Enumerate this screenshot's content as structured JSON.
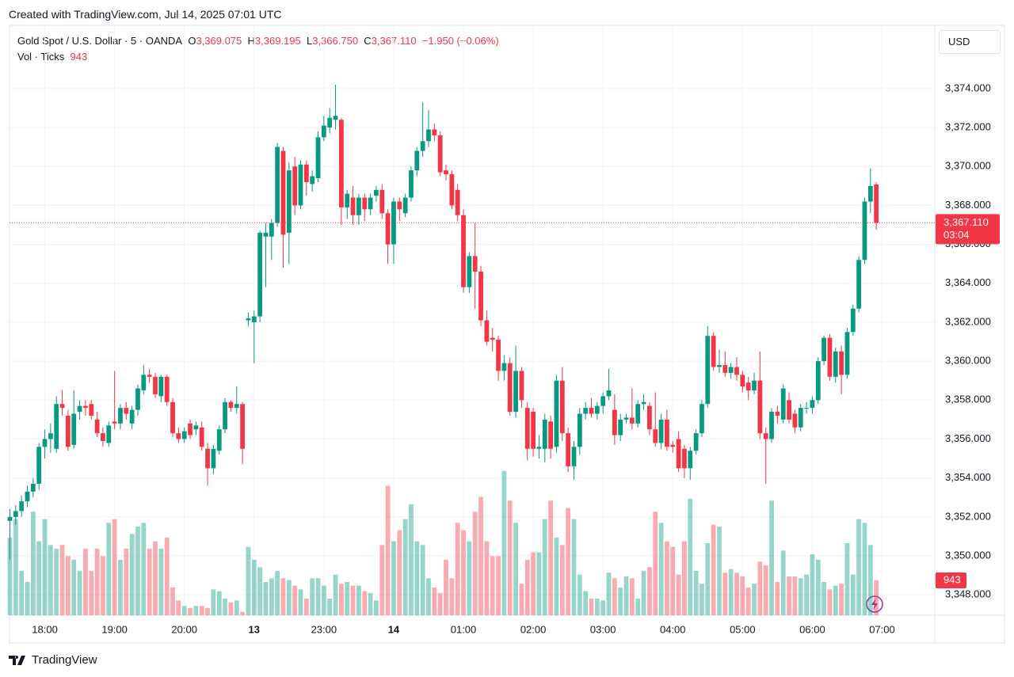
{
  "header": {
    "created": "Created with TradingView.com, Jul 14, 2025 07:01 UTC",
    "symbol": "Gold Spot / U.S. Dollar · 5 · OANDA",
    "ohlc_labels": [
      {
        "key": "O",
        "value": "3,369.075"
      },
      {
        "key": "H",
        "value": "3,369.195"
      },
      {
        "key": "L",
        "value": "3,366.750"
      },
      {
        "key": "C",
        "value": "3,367.110"
      }
    ],
    "change": "−1.950 (−0.06%)",
    "volume_title": "Vol · Ticks",
    "currency": "USD",
    "countdown": "03:04",
    "brand": "TradingView"
  },
  "chart_data": {
    "type": "candlestick",
    "up_color": "#089981",
    "down_color": "#f23645",
    "grid": true,
    "ylim": [
      3346.95,
      3377.25
    ],
    "yticks": [
      {
        "value": 3348,
        "label": "3,348.000"
      },
      {
        "value": 3350,
        "label": "3,350.000"
      },
      {
        "value": 3352,
        "label": "3,352.000"
      },
      {
        "value": 3354,
        "label": "3,354.000"
      },
      {
        "value": 3356,
        "label": "3,356.000"
      },
      {
        "value": 3358,
        "label": "3,358.000"
      },
      {
        "value": 3360,
        "label": "3,360.000"
      },
      {
        "value": 3362,
        "label": "3,362.000"
      },
      {
        "value": 3364,
        "label": "3,364.000"
      },
      {
        "value": 3366,
        "label": "3,366.000"
      },
      {
        "value": 3368,
        "label": "3,368.000"
      },
      {
        "value": 3370,
        "label": "3,370.000"
      },
      {
        "value": 3372,
        "label": "3,372.000"
      },
      {
        "value": 3374,
        "label": "3,374.000"
      }
    ],
    "xticks": [
      {
        "value": 6,
        "label": "18:00"
      },
      {
        "value": 18,
        "label": "19:00"
      },
      {
        "value": 30,
        "label": "20:00"
      },
      {
        "value": 42,
        "label": "13"
      },
      {
        "value": 54,
        "label": "23:00"
      },
      {
        "value": 66,
        "label": "14"
      },
      {
        "value": 78,
        "label": "01:00"
      },
      {
        "value": 90,
        "label": "02:00"
      },
      {
        "value": 102,
        "label": "03:00"
      },
      {
        "value": 114,
        "label": "04:00"
      },
      {
        "value": 126,
        "label": "05:00"
      },
      {
        "value": 138,
        "label": "06:00"
      },
      {
        "value": 150,
        "label": "07:00"
      }
    ],
    "last_price": {
      "value": 3367.11,
      "label": "3,367.110"
    },
    "ohlc": [
      [
        3351.8,
        3352.4,
        3349.8,
        3352.0
      ],
      [
        3352.0,
        3352.6,
        3351.6,
        3352.3
      ],
      [
        3352.3,
        3353.1,
        3352.0,
        3352.8
      ],
      [
        3352.8,
        3353.6,
        3352.5,
        3353.3
      ],
      [
        3353.3,
        3354.0,
        3353.0,
        3353.7
      ],
      [
        3353.7,
        3355.8,
        3353.4,
        3355.6
      ],
      [
        3355.6,
        3356.5,
        3355.0,
        3356.0
      ],
      [
        3356.0,
        3356.8,
        3355.3,
        3356.3
      ],
      [
        3355.5,
        3358.2,
        3355.3,
        3357.8
      ],
      [
        3357.8,
        3358.5,
        3357.2,
        3357.6
      ],
      [
        3357.2,
        3357.5,
        3355.4,
        3355.6
      ],
      [
        3355.7,
        3358.5,
        3355.5,
        3357.3
      ],
      [
        3357.4,
        3358.0,
        3357.0,
        3357.7
      ],
      [
        3357.7,
        3358.0,
        3357.2,
        3357.6
      ],
      [
        3357.8,
        3358.0,
        3357.0,
        3357.2
      ],
      [
        3357.0,
        3357.4,
        3356.1,
        3356.3
      ],
      [
        3356.3,
        3356.6,
        3355.6,
        3355.9
      ],
      [
        3355.8,
        3356.9,
        3355.6,
        3356.7
      ],
      [
        3356.9,
        3359.5,
        3356.5,
        3356.8
      ],
      [
        3356.8,
        3357.8,
        3356.5,
        3357.6
      ],
      [
        3357.6,
        3357.9,
        3357.0,
        3357.3
      ],
      [
        3356.8,
        3357.7,
        3356.5,
        3357.5
      ],
      [
        3357.5,
        3358.8,
        3357.2,
        3358.6
      ],
      [
        3358.5,
        3359.8,
        3358.3,
        3359.3
      ],
      [
        3359.3,
        3359.6,
        3358.9,
        3359.2
      ],
      [
        3359.2,
        3359.4,
        3358.1,
        3358.3
      ],
      [
        3358.2,
        3359.3,
        3357.9,
        3359.2
      ],
      [
        3359.2,
        3359.3,
        3357.7,
        3357.9
      ],
      [
        3357.9,
        3358.1,
        3356.1,
        3356.3
      ],
      [
        3356.3,
        3356.6,
        3355.8,
        3356.0
      ],
      [
        3356.0,
        3356.6,
        3355.8,
        3356.4
      ],
      [
        3356.8,
        3357.0,
        3356.0,
        3356.2
      ],
      [
        3356.5,
        3356.9,
        3356.2,
        3356.7
      ],
      [
        3356.6,
        3356.9,
        3355.4,
        3355.6
      ],
      [
        3355.5,
        3355.8,
        3353.6,
        3354.5
      ],
      [
        3354.5,
        3355.7,
        3354.2,
        3355.5
      ],
      [
        3355.4,
        3356.7,
        3355.2,
        3356.5
      ],
      [
        3356.5,
        3358.1,
        3356.3,
        3357.9
      ],
      [
        3357.9,
        3358.0,
        3357.4,
        3357.6
      ],
      [
        3357.6,
        3358.7,
        3357.3,
        3357.8
      ],
      [
        3357.8,
        3357.9,
        3354.7,
        3355.5
      ],
      [
        3362.1,
        3362.5,
        3361.8,
        3362.2
      ],
      [
        3362.0,
        3362.6,
        3359.9,
        3362.3
      ],
      [
        3362.3,
        3366.7,
        3362.0,
        3366.6
      ],
      [
        3366.4,
        3367.1,
        3363.8,
        3366.6
      ],
      [
        3366.4,
        3367.3,
        3365.2,
        3367.1
      ],
      [
        3367.1,
        3371.2,
        3366.9,
        3371.0
      ],
      [
        3370.8,
        3371.0,
        3364.8,
        3366.5
      ],
      [
        3366.6,
        3370.2,
        3365.0,
        3369.8
      ],
      [
        3370.0,
        3370.5,
        3367.5,
        3368.0
      ],
      [
        3368.0,
        3370.3,
        3367.8,
        3370.1
      ],
      [
        3370.1,
        3370.3,
        3368.5,
        3369.2
      ],
      [
        3369.1,
        3369.8,
        3368.7,
        3369.5
      ],
      [
        3369.4,
        3371.8,
        3369.2,
        3371.5
      ],
      [
        3371.5,
        3372.6,
        3371.3,
        3372.1
      ],
      [
        3372.0,
        3373.0,
        3371.7,
        3372.5
      ],
      [
        3372.4,
        3374.2,
        3371.9,
        3372.6
      ],
      [
        3372.4,
        3372.5,
        3367.0,
        3367.9
      ],
      [
        3367.9,
        3368.8,
        3367.3,
        3368.6
      ],
      [
        3368.4,
        3369.0,
        3367.0,
        3367.5
      ],
      [
        3367.5,
        3368.6,
        3367.0,
        3368.4
      ],
      [
        3368.4,
        3368.6,
        3367.2,
        3367.8
      ],
      [
        3367.8,
        3368.6,
        3367.5,
        3368.4
      ],
      [
        3368.5,
        3369.0,
        3368.2,
        3368.8
      ],
      [
        3368.8,
        3369.1,
        3367.3,
        3367.6
      ],
      [
        3367.6,
        3367.8,
        3365.0,
        3366.0
      ],
      [
        3366.0,
        3368.4,
        3365.0,
        3368.2
      ],
      [
        3368.2,
        3368.4,
        3367.2,
        3367.8
      ],
      [
        3367.6,
        3368.6,
        3367.4,
        3368.4
      ],
      [
        3368.4,
        3370.0,
        3368.2,
        3369.8
      ],
      [
        3369.8,
        3371.0,
        3369.5,
        3370.8
      ],
      [
        3370.8,
        3373.3,
        3370.5,
        3371.3
      ],
      [
        3371.3,
        3372.9,
        3371.0,
        3371.9
      ],
      [
        3371.9,
        3372.2,
        3371.3,
        3371.6
      ],
      [
        3371.6,
        3371.8,
        3369.5,
        3369.7
      ],
      [
        3369.8,
        3370.1,
        3369.3,
        3369.6
      ],
      [
        3369.6,
        3369.8,
        3367.8,
        3368.0
      ],
      [
        3368.8,
        3369.1,
        3367.2,
        3367.5
      ],
      [
        3367.5,
        3367.8,
        3363.5,
        3363.8
      ],
      [
        3363.8,
        3365.6,
        3363.5,
        3365.4
      ],
      [
        3365.4,
        3367.1,
        3362.7,
        3364.6
      ],
      [
        3364.6,
        3364.9,
        3361.8,
        3362.1
      ],
      [
        3362.1,
        3362.6,
        3360.8,
        3361.0
      ],
      [
        3361.2,
        3361.7,
        3360.5,
        3361.1
      ],
      [
        3361.1,
        3361.3,
        3359.0,
        3359.5
      ],
      [
        3359.5,
        3360.3,
        3359.0,
        3359.9
      ],
      [
        3359.9,
        3360.2,
        3357.2,
        3357.4
      ],
      [
        3357.4,
        3360.8,
        3357.1,
        3359.5
      ],
      [
        3359.5,
        3359.7,
        3357.6,
        3358.0
      ],
      [
        3357.6,
        3357.9,
        3354.9,
        3355.5
      ],
      [
        3357.4,
        3357.6,
        3355.1,
        3355.5
      ],
      [
        3355.5,
        3356.2,
        3355.0,
        3355.6
      ],
      [
        3355.5,
        3357.3,
        3354.8,
        3357.0
      ],
      [
        3356.9,
        3357.2,
        3355.0,
        3355.5
      ],
      [
        3355.6,
        3359.3,
        3355.3,
        3359.0
      ],
      [
        3359.0,
        3359.7,
        3355.9,
        3356.3
      ],
      [
        3356.3,
        3356.6,
        3354.3,
        3354.6
      ],
      [
        3354.6,
        3355.9,
        3353.9,
        3355.6
      ],
      [
        3355.6,
        3357.6,
        3355.2,
        3357.3
      ],
      [
        3357.3,
        3357.9,
        3357.0,
        3357.6
      ],
      [
        3357.6,
        3358.1,
        3357.1,
        3357.3
      ],
      [
        3357.3,
        3357.9,
        3357.0,
        3357.7
      ],
      [
        3357.7,
        3358.4,
        3357.3,
        3358.2
      ],
      [
        3358.2,
        3359.6,
        3358.0,
        3358.5
      ],
      [
        3357.5,
        3358.3,
        3355.7,
        3356.2
      ],
      [
        3356.2,
        3357.3,
        3355.9,
        3357.0
      ],
      [
        3357.0,
        3357.3,
        3356.8,
        3357.1
      ],
      [
        3357.1,
        3358.6,
        3356.5,
        3356.8
      ],
      [
        3356.8,
        3358.0,
        3356.6,
        3357.8
      ],
      [
        3357.8,
        3358.3,
        3357.5,
        3357.9
      ],
      [
        3357.7,
        3357.9,
        3356.2,
        3356.5
      ],
      [
        3356.5,
        3358.4,
        3355.6,
        3355.8
      ],
      [
        3355.8,
        3357.3,
        3355.5,
        3357.0
      ],
      [
        3357.0,
        3357.5,
        3355.4,
        3355.6
      ],
      [
        3355.7,
        3355.9,
        3355.3,
        3355.6
      ],
      [
        3356.0,
        3356.4,
        3354.3,
        3354.5
      ],
      [
        3355.5,
        3355.7,
        3354.0,
        3354.5
      ],
      [
        3354.5,
        3355.6,
        3353.9,
        3355.4
      ],
      [
        3355.4,
        3356.5,
        3355.2,
        3356.3
      ],
      [
        3356.3,
        3358.0,
        3356.1,
        3357.8
      ],
      [
        3357.8,
        3361.8,
        3357.6,
        3361.3
      ],
      [
        3361.3,
        3361.5,
        3359.5,
        3359.7
      ],
      [
        3359.7,
        3360.6,
        3359.4,
        3359.8
      ],
      [
        3359.8,
        3360.5,
        3359.2,
        3359.4
      ],
      [
        3359.4,
        3359.9,
        3359.1,
        3359.7
      ],
      [
        3359.7,
        3360.2,
        3359.0,
        3359.3
      ],
      [
        3359.3,
        3359.5,
        3358.4,
        3358.7
      ],
      [
        3358.9,
        3359.2,
        3358.0,
        3358.5
      ],
      [
        3358.5,
        3359.4,
        3358.3,
        3359.0
      ],
      [
        3359.0,
        3360.5,
        3356.0,
        3356.3
      ],
      [
        3356.3,
        3356.6,
        3353.7,
        3356.0
      ],
      [
        3356.0,
        3357.6,
        3355.8,
        3357.4
      ],
      [
        3357.4,
        3357.7,
        3356.8,
        3357.2
      ],
      [
        3357.0,
        3358.8,
        3356.8,
        3358.6
      ],
      [
        3358.0,
        3358.4,
        3356.8,
        3357.0
      ],
      [
        3357.3,
        3357.5,
        3356.3,
        3356.6
      ],
      [
        3356.6,
        3357.8,
        3356.4,
        3357.6
      ],
      [
        3357.6,
        3357.9,
        3357.3,
        3357.6
      ],
      [
        3357.6,
        3358.2,
        3357.3,
        3358.0
      ],
      [
        3358.0,
        3360.2,
        3357.8,
        3360.0
      ],
      [
        3360.0,
        3361.3,
        3359.8,
        3361.2
      ],
      [
        3361.2,
        3361.4,
        3359.0,
        3359.2
      ],
      [
        3359.2,
        3360.7,
        3358.9,
        3360.5
      ],
      [
        3360.5,
        3360.8,
        3358.3,
        3359.3
      ],
      [
        3359.3,
        3361.7,
        3359.1,
        3361.5
      ],
      [
        3361.5,
        3362.9,
        3361.3,
        3362.7
      ],
      [
        3362.7,
        3365.4,
        3362.5,
        3365.2
      ],
      [
        3365.2,
        3368.4,
        3365.0,
        3368.2
      ],
      [
        3368.2,
        3369.9,
        3367.6,
        3369.0
      ],
      [
        3369.075,
        3369.195,
        3366.75,
        3367.11
      ]
    ],
    "volume": [
      2100,
      2600,
      1200,
      900,
      2800,
      2000,
      2600,
      1900,
      1800,
      1900,
      1600,
      1500,
      1200,
      1800,
      1200,
      1800,
      1600,
      2500,
      2600,
      1500,
      1800,
      2200,
      2400,
      2500,
      1800,
      2000,
      1800,
      2100,
      750,
      400,
      250,
      200,
      250,
      250,
      200,
      700,
      650,
      450,
      350,
      400,
      90,
      1850,
      1500,
      1300,
      900,
      1000,
      1200,
      1000,
      950,
      800,
      700,
      450,
      1000,
      1000,
      800,
      450,
      1100,
      850,
      900,
      800,
      800,
      650,
      600,
      400,
      1900,
      3500,
      2000,
      2300,
      2600,
      3000,
      2000,
      1900,
      1000,
      750,
      600,
      1500,
      1000,
      2500,
      2300,
      2000,
      2800,
      3200,
      2000,
      1600,
      1600,
      3900,
      3100,
      2500,
      850,
      1500,
      1700,
      1700,
      2600,
      3100,
      2100,
      1900,
      2900,
      2600,
      1100,
      650,
      450,
      450,
      400,
      1150,
      1000,
      750,
      1050,
      1000,
      450,
      1200,
      1300,
      2800,
      2500,
      2000,
      1850,
      1100,
      2000,
      3150,
      1200,
      850,
      1950,
      2450,
      2400,
      1150,
      1250,
      1150,
      1050,
      750,
      850,
      1450,
      1350,
      3100,
      900,
      1750,
      1050,
      1050,
      1000,
      1100,
      1650,
      1500,
      900,
      700,
      800,
      850,
      1950,
      1100,
      2600,
      2500,
      1900,
      943
    ]
  }
}
